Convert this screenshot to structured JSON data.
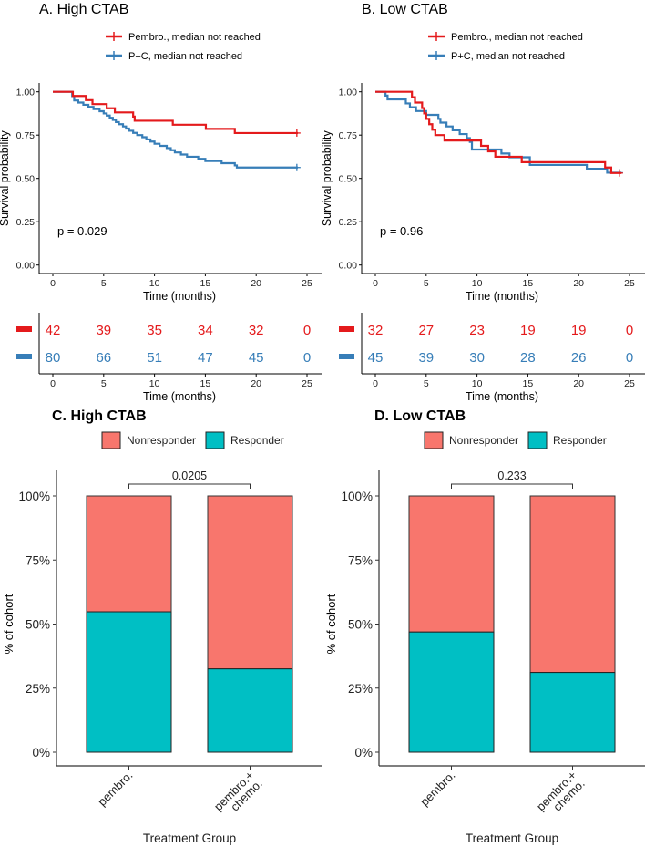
{
  "km_panels": [
    {
      "title": "A. High CTAB",
      "legend": [
        {
          "label": "Pembro., median not reached",
          "color": "#E41A1C"
        },
        {
          "label": "P+C, median not reached",
          "color": "#377EB8"
        }
      ],
      "ylabel": "Survival probability",
      "xlabel": "Time (months)",
      "yticks": [
        "0.00",
        "0.25",
        "0.50",
        "0.75",
        "1.00"
      ],
      "xticks": [
        "0",
        "5",
        "10",
        "15",
        "20",
        "25"
      ],
      "pvalue": "p = 0.029",
      "risk_table": {
        "xlabel": "Time (months)",
        "xticks": [
          "0",
          "5",
          "10",
          "15",
          "20",
          "25"
        ],
        "rows": [
          {
            "color": "#E41A1C",
            "values": [
              "42",
              "39",
              "35",
              "34",
              "32",
              "0"
            ]
          },
          {
            "color": "#377EB8",
            "values": [
              "80",
              "66",
              "51",
              "47",
              "45",
              "0"
            ]
          }
        ]
      }
    },
    {
      "title": "B. Low CTAB",
      "legend": [
        {
          "label": "Pembro., median not reached",
          "color": "#E41A1C"
        },
        {
          "label": "P+C, median not reached",
          "color": "#377EB8"
        }
      ],
      "ylabel": "Survival probability",
      "xlabel": "Time (months)",
      "yticks": [
        "0.00",
        "0.25",
        "0.50",
        "0.75",
        "1.00"
      ],
      "xticks": [
        "0",
        "5",
        "10",
        "15",
        "20",
        "25"
      ],
      "pvalue": "p = 0.96",
      "risk_table": {
        "xlabel": "Time (months)",
        "xticks": [
          "0",
          "5",
          "10",
          "15",
          "20",
          "25"
        ],
        "rows": [
          {
            "color": "#E41A1C",
            "values": [
              "32",
              "27",
              "23",
              "19",
              "19",
              "0"
            ]
          },
          {
            "color": "#377EB8",
            "values": [
              "45",
              "39",
              "30",
              "28",
              "26",
              "0"
            ]
          }
        ]
      }
    }
  ],
  "bar_panels": [
    {
      "title": "C. High CTAB",
      "legend": [
        {
          "label": "Nonresponder",
          "color": "#F8766D"
        },
        {
          "label": "Responder",
          "color": "#00BFC4"
        }
      ],
      "ylabel": "% of cohort",
      "xlabel": "Treatment Group",
      "yticks": [
        "0%",
        "25%",
        "50%",
        "75%",
        "100%"
      ],
      "categories": [
        [
          "pembro."
        ],
        [
          "pembro.+",
          "chemo."
        ]
      ],
      "pvalue": "0.0205"
    },
    {
      "title": "D. Low CTAB",
      "legend": [
        {
          "label": "Nonresponder",
          "color": "#F8766D"
        },
        {
          "label": "Responder",
          "color": "#00BFC4"
        }
      ],
      "ylabel": "% of cohort",
      "xlabel": "Treatment Group",
      "yticks": [
        "0%",
        "25%",
        "50%",
        "75%",
        "100%"
      ],
      "categories": [
        [
          "pembro."
        ],
        [
          "pembro.+",
          "chemo."
        ]
      ],
      "pvalue": "0.233"
    }
  ],
  "chart_data": [
    {
      "type": "line",
      "title": "A. High CTAB",
      "xlabel": "Time (months)",
      "ylabel": "Survival probability",
      "xlim": [
        0,
        25
      ],
      "ylim": [
        0,
        1
      ],
      "grid": false,
      "legend_position": "top",
      "annotation": "p = 0.029",
      "series": [
        {
          "name": "Pembro., median not reached",
          "color": "#E41A1C",
          "steps": [
            [
              0,
              1.0
            ],
            [
              1.97,
              0.976
            ],
            [
              3.25,
              0.952
            ],
            [
              3.9,
              0.929
            ],
            [
              5.3,
              0.905
            ],
            [
              6.1,
              0.881
            ],
            [
              7.9,
              0.857
            ],
            [
              8.05,
              0.833
            ],
            [
              11.8,
              0.81
            ],
            [
              15.05,
              0.786
            ],
            [
              17.9,
              0.762
            ],
            [
              24.1,
              0.762
            ]
          ],
          "censor": [
            [
              24.0,
              0.762
            ]
          ]
        },
        {
          "name": "P+C, median not reached",
          "color": "#377EB8",
          "steps": [
            [
              0,
              1.0
            ],
            [
              1.9,
              0.975
            ],
            [
              2.1,
              0.95
            ],
            [
              2.5,
              0.938
            ],
            [
              3.0,
              0.925
            ],
            [
              3.5,
              0.913
            ],
            [
              4.0,
              0.9
            ],
            [
              4.6,
              0.888
            ],
            [
              5.0,
              0.875
            ],
            [
              5.3,
              0.863
            ],
            [
              5.6,
              0.85
            ],
            [
              5.9,
              0.838
            ],
            [
              6.2,
              0.825
            ],
            [
              6.5,
              0.813
            ],
            [
              6.9,
              0.8
            ],
            [
              7.2,
              0.788
            ],
            [
              7.5,
              0.775
            ],
            [
              7.9,
              0.763
            ],
            [
              8.3,
              0.75
            ],
            [
              8.8,
              0.738
            ],
            [
              9.2,
              0.725
            ],
            [
              9.6,
              0.713
            ],
            [
              10.0,
              0.7
            ],
            [
              10.5,
              0.688
            ],
            [
              11.2,
              0.675
            ],
            [
              11.6,
              0.663
            ],
            [
              12.0,
              0.65
            ],
            [
              12.6,
              0.638
            ],
            [
              13.2,
              0.625
            ],
            [
              14.3,
              0.613
            ],
            [
              15.0,
              0.6
            ],
            [
              16.6,
              0.588
            ],
            [
              17.9,
              0.575
            ],
            [
              18.1,
              0.563
            ],
            [
              24.1,
              0.563
            ]
          ],
          "censor": [
            [
              24.0,
              0.563
            ]
          ]
        }
      ],
      "risk_table": {
        "times": [
          0,
          5,
          10,
          15,
          20,
          25
        ],
        "Pembro.": [
          42,
          39,
          35,
          34,
          32,
          0
        ],
        "P+C": [
          80,
          66,
          51,
          47,
          45,
          0
        ]
      }
    },
    {
      "type": "line",
      "title": "B. Low CTAB",
      "xlabel": "Time (months)",
      "ylabel": "Survival probability",
      "xlim": [
        0,
        25
      ],
      "ylim": [
        0,
        1
      ],
      "grid": false,
      "legend_position": "top",
      "annotation": "p = 0.96",
      "series": [
        {
          "name": "Pembro., median not reached",
          "color": "#E41A1C",
          "steps": [
            [
              0,
              1.0
            ],
            [
              3.6,
              0.969
            ],
            [
              3.9,
              0.938
            ],
            [
              4.6,
              0.906
            ],
            [
              4.8,
              0.875
            ],
            [
              5.0,
              0.844
            ],
            [
              5.3,
              0.813
            ],
            [
              5.6,
              0.781
            ],
            [
              5.9,
              0.75
            ],
            [
              6.8,
              0.719
            ],
            [
              10.4,
              0.688
            ],
            [
              11.1,
              0.656
            ],
            [
              11.8,
              0.625
            ],
            [
              14.4,
              0.594
            ],
            [
              22.6,
              0.563
            ],
            [
              23.2,
              0.531
            ],
            [
              24.2,
              0.531
            ]
          ],
          "censor": [
            [
              24.0,
              0.531
            ]
          ]
        },
        {
          "name": "P+C, median not reached",
          "color": "#377EB8",
          "steps": [
            [
              0,
              1.0
            ],
            [
              1.0,
              0.978
            ],
            [
              1.2,
              0.956
            ],
            [
              3.0,
              0.933
            ],
            [
              3.4,
              0.911
            ],
            [
              4.0,
              0.889
            ],
            [
              5.0,
              0.867
            ],
            [
              6.2,
              0.844
            ],
            [
              6.4,
              0.822
            ],
            [
              7.0,
              0.8
            ],
            [
              7.6,
              0.778
            ],
            [
              8.3,
              0.756
            ],
            [
              9.0,
              0.733
            ],
            [
              9.3,
              0.711
            ],
            [
              9.5,
              0.667
            ],
            [
              12.4,
              0.644
            ],
            [
              13.2,
              0.622
            ],
            [
              15.2,
              0.578
            ],
            [
              20.8,
              0.556
            ],
            [
              22.8,
              0.533
            ],
            [
              24.2,
              0.533
            ]
          ],
          "censor": [
            [
              24.0,
              0.533
            ]
          ]
        }
      ],
      "risk_table": {
        "times": [
          0,
          5,
          10,
          15,
          20,
          25
        ],
        "Pembro.": [
          32,
          27,
          23,
          19,
          19,
          0
        ],
        "P+C": [
          45,
          39,
          30,
          28,
          26,
          0
        ]
      }
    },
    {
      "type": "bar",
      "stacked": true,
      "title": "C. High CTAB",
      "xlabel": "Treatment Group",
      "ylabel": "% of cohort",
      "ylim": [
        0,
        100
      ],
      "categories": [
        "pembro.",
        "pembro.+ chemo."
      ],
      "series": [
        {
          "name": "Responder",
          "color": "#00BFC4",
          "values": [
            54.8,
            32.5
          ]
        },
        {
          "name": "Nonresponder",
          "color": "#F8766D",
          "values": [
            45.2,
            67.5
          ]
        }
      ],
      "legend_position": "top",
      "annotation": "0.0205"
    },
    {
      "type": "bar",
      "stacked": true,
      "title": "D. Low CTAB",
      "xlabel": "Treatment Group",
      "ylabel": "% of cohort",
      "ylim": [
        0,
        100
      ],
      "categories": [
        "pembro.",
        "pembro.+ chemo."
      ],
      "series": [
        {
          "name": "Responder",
          "color": "#00BFC4",
          "values": [
            46.9,
            31.1
          ]
        },
        {
          "name": "Nonresponder",
          "color": "#F8766D",
          "values": [
            53.1,
            68.9
          ]
        }
      ],
      "legend_position": "top",
      "annotation": "0.233"
    }
  ]
}
